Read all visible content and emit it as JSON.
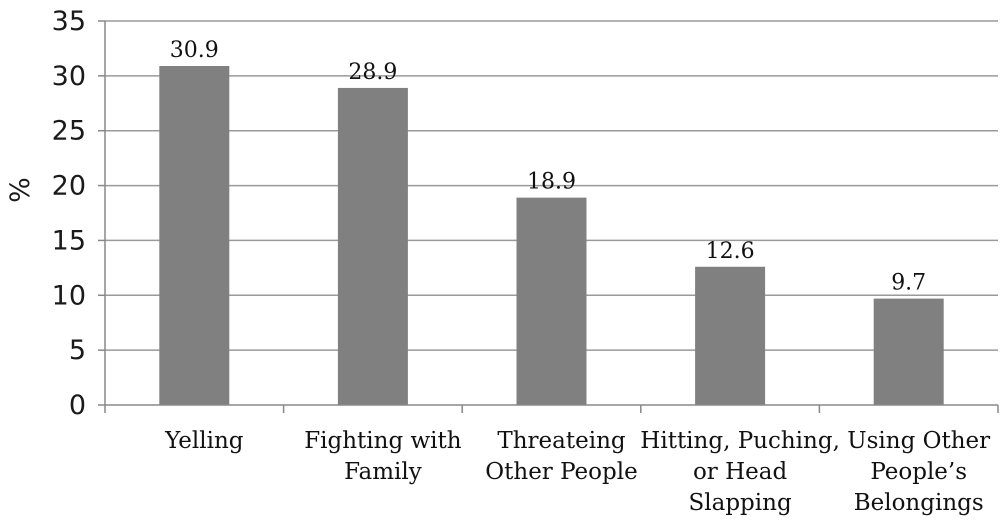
{
  "chart_data": {
    "type": "bar",
    "categories": [
      [
        "Yelling"
      ],
      [
        "Fighting with",
        "Family"
      ],
      [
        "Threateing",
        "Other People"
      ],
      [
        "Hitting, Puching,",
        "or Head",
        "Slapping"
      ],
      [
        "Using Other",
        "People’s",
        "Belongings"
      ]
    ],
    "values": [
      30.9,
      28.9,
      18.9,
      12.6,
      9.7
    ],
    "value_labels": [
      "30.9",
      "28.9",
      "18.9",
      "12.6",
      "9.7"
    ],
    "title": "",
    "xlabel": "",
    "ylabel": "%",
    "ylim": [
      0,
      35
    ],
    "yticks": [
      0,
      5,
      10,
      15,
      20,
      25,
      30,
      35
    ],
    "grid": true,
    "legend": "none",
    "colors": {
      "bar": "#808080",
      "grid": "#9a9a9a",
      "axis": "#888888",
      "text": "#111111"
    }
  }
}
